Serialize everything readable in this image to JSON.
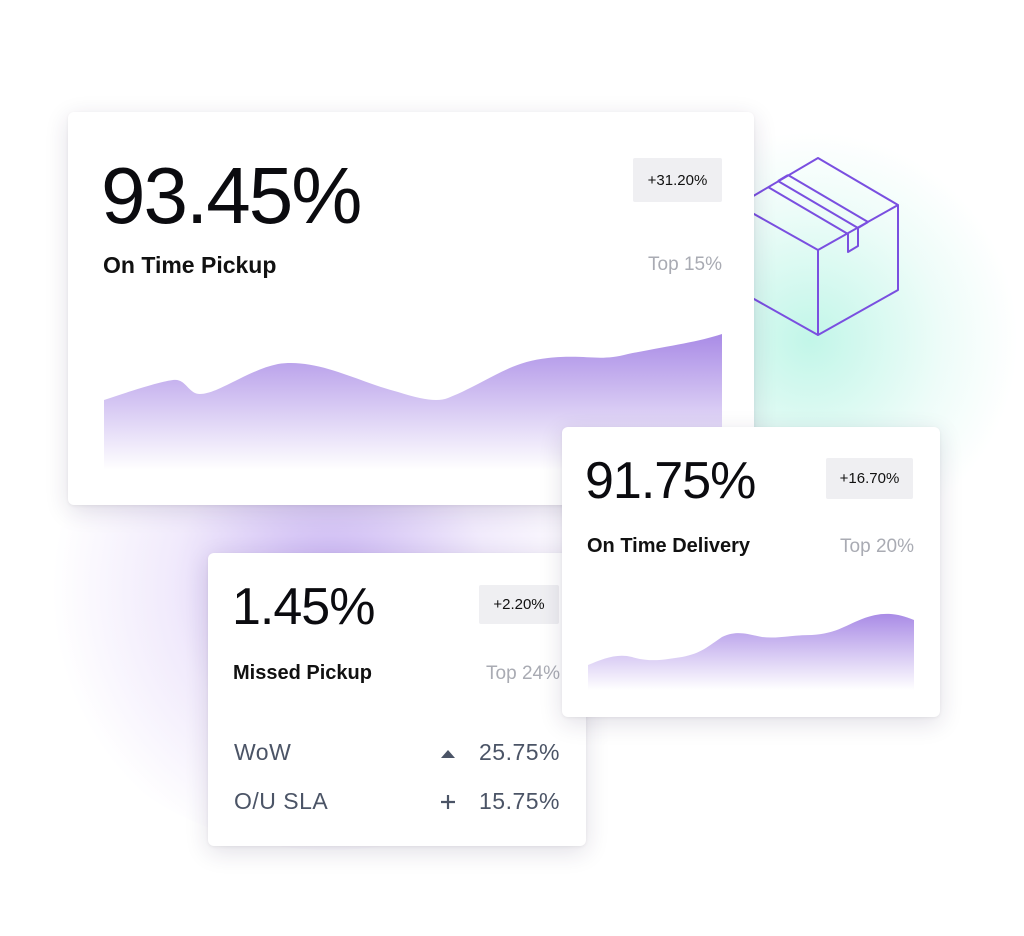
{
  "cards": [
    {
      "value": "93.45%",
      "label": "On Time Pickup",
      "change": "+31.20%",
      "rank": "Top 15%"
    },
    {
      "value": "91.75%",
      "label": "On Time Delivery",
      "change": "+16.70%",
      "rank": "Top 20%"
    },
    {
      "value": "1.45%",
      "label": "Missed Pickup",
      "change": "+2.20%",
      "rank": "Top 24%",
      "rows": [
        {
          "label": "WoW",
          "value": "25.75%"
        },
        {
          "label": "O/U SLA",
          "value": "15.75%"
        }
      ]
    }
  ]
}
